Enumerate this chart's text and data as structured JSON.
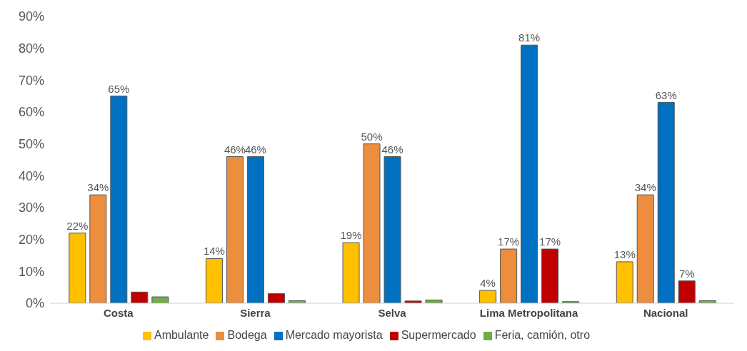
{
  "chart_data": {
    "type": "bar",
    "categories": [
      "Costa",
      "Sierra",
      "Selva",
      "Lima Metropolitana",
      "Nacional"
    ],
    "series": [
      {
        "name": "Ambulante",
        "color": "#ffc000",
        "values": [
          22,
          14,
          19,
          4,
          13
        ],
        "value_labels": [
          "22%",
          "14%",
          "19%",
          "4%",
          "13%"
        ]
      },
      {
        "name": "Bodega",
        "color": "#ed8e3e",
        "values": [
          34,
          46,
          50,
          17,
          34
        ],
        "value_labels": [
          "34%",
          "46%",
          "50%",
          "17%",
          "34%"
        ]
      },
      {
        "name": "Mercado mayorista",
        "color": "#0070c0",
        "values": [
          65,
          46,
          46,
          81,
          63
        ],
        "value_labels": [
          "65%",
          "46%",
          "46%",
          "81%",
          "63%"
        ]
      },
      {
        "name": "Supermercado",
        "color": "#c00000",
        "values": [
          3.5,
          3,
          0.7,
          17,
          7
        ],
        "value_labels": [
          null,
          null,
          null,
          "17%",
          "7%"
        ]
      },
      {
        "name": "Feria, camión, otro",
        "color": "#70ad47",
        "values": [
          2,
          0.8,
          1,
          0.5,
          0.8
        ]
      }
    ],
    "ylim": [
      0,
      90
    ],
    "yticks": [
      {
        "value": 0,
        "label": "0%"
      },
      {
        "value": 10,
        "label": "10%"
      },
      {
        "value": 20,
        "label": "20%"
      },
      {
        "value": 30,
        "label": "30%"
      },
      {
        "value": 40,
        "label": "40%"
      },
      {
        "value": 50,
        "label": "50%"
      },
      {
        "value": 60,
        "label": "60%"
      },
      {
        "value": 70,
        "label": "70%"
      },
      {
        "value": 80,
        "label": "80%"
      },
      {
        "value": 90,
        "label": "90%"
      }
    ],
    "grid": false,
    "legend": "bottom"
  }
}
